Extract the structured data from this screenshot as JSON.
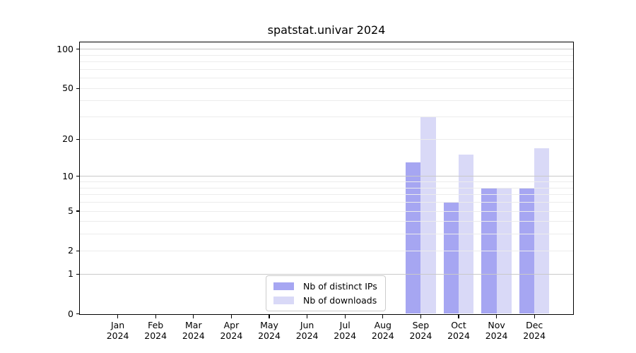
{
  "chart_data": {
    "type": "bar",
    "title": "spatstat.univar 2024",
    "categories": [
      "Jan 2024",
      "Feb 2024",
      "Mar 2024",
      "Apr 2024",
      "May 2024",
      "Jun 2024",
      "Jul 2024",
      "Aug 2024",
      "Sep 2024",
      "Oct 2024",
      "Nov 2024",
      "Dec 2024"
    ],
    "series": [
      {
        "name": "Nb of distinct IPs",
        "key": "distinct-ips",
        "color": "#a6a6f2",
        "values": [
          0,
          0,
          0,
          0,
          0,
          0,
          0,
          0,
          13,
          6,
          8,
          8
        ]
      },
      {
        "name": "Nb of downloads",
        "key": "downloads",
        "color": "#d9d9f7",
        "values": [
          0,
          0,
          0,
          0,
          0,
          0,
          0,
          0,
          30,
          15,
          8,
          17
        ]
      }
    ],
    "yscale": "log1p",
    "ylim": [
      0,
      113
    ],
    "y_tick_values": [
      100,
      50,
      20,
      10,
      5,
      2,
      1,
      0
    ],
    "y_grid_major": [
      1,
      10,
      100
    ],
    "y_grid_minor": [
      2,
      3,
      4,
      5,
      6,
      7,
      8,
      9,
      20,
      30,
      40,
      50,
      60,
      70,
      80,
      90
    ],
    "grid": "on",
    "legend_position": "lower center"
  },
  "colors": {
    "background": "#ffffff",
    "axis": "#000000",
    "grid_major": "#c9c9c9",
    "grid_minor": "#ececec"
  }
}
